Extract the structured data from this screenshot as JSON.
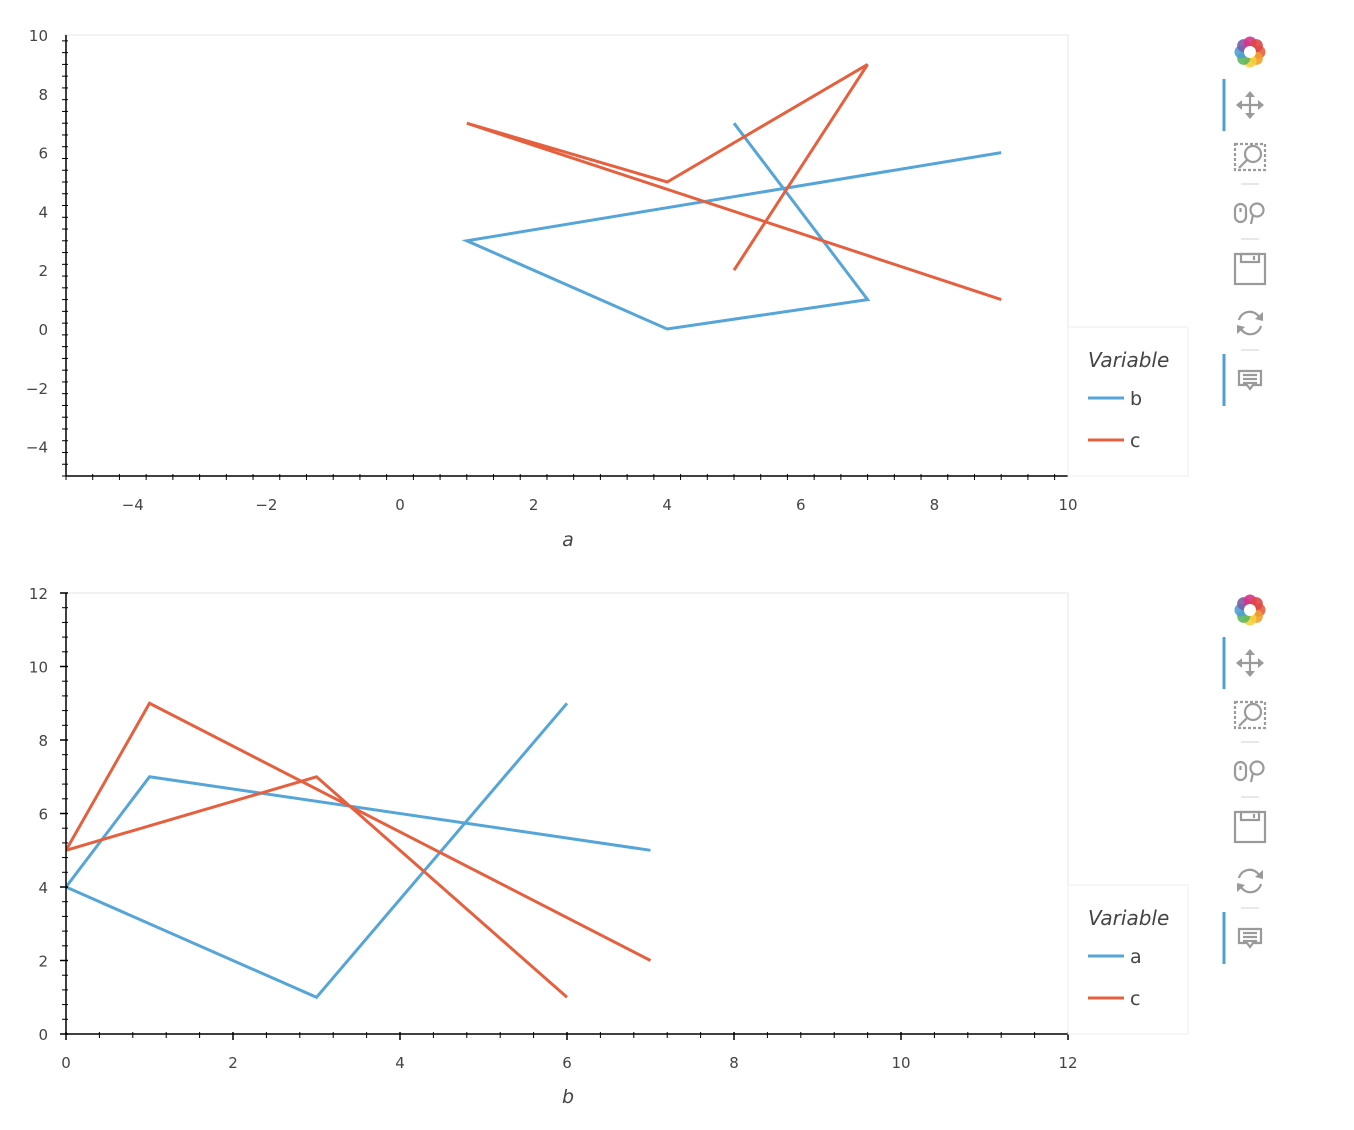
{
  "chart_data": [
    {
      "type": "line",
      "xlabel": "a",
      "ylabel": "",
      "xlim": [
        -5,
        10
      ],
      "ylim": [
        -5,
        10
      ],
      "xticks": [
        -4,
        -2,
        0,
        2,
        4,
        6,
        8,
        10
      ],
      "yticks": [
        -4,
        -2,
        0,
        2,
        4,
        6,
        8,
        10
      ],
      "xtick_labels": [
        "−4",
        "−2",
        "0",
        "2",
        "4",
        "6",
        "8",
        "10"
      ],
      "ytick_labels": [
        "−4",
        "−2",
        "0",
        "2",
        "4",
        "6",
        "8",
        "10"
      ],
      "grid": false,
      "legend": {
        "title": "Variable",
        "position": "right",
        "labels": [
          "b",
          "c"
        ]
      },
      "series": [
        {
          "name": "b",
          "color": "#56a5d8",
          "x": [
            5,
            7,
            4,
            1,
            9
          ],
          "y": [
            7,
            1,
            0,
            3,
            6
          ]
        },
        {
          "name": "c",
          "color": "#e5603f",
          "x": [
            5,
            7,
            4,
            1,
            9
          ],
          "y": [
            2,
            9,
            5,
            7,
            1
          ]
        }
      ]
    },
    {
      "type": "line",
      "xlabel": "b",
      "ylabel": "",
      "xlim": [
        0,
        12
      ],
      "ylim": [
        0,
        12
      ],
      "xticks": [
        0,
        2,
        4,
        6,
        8,
        10,
        12
      ],
      "yticks": [
        0,
        2,
        4,
        6,
        8,
        10,
        12
      ],
      "xtick_labels": [
        "0",
        "2",
        "4",
        "6",
        "8",
        "10",
        "12"
      ],
      "ytick_labels": [
        "0",
        "2",
        "4",
        "6",
        "8",
        "10",
        "12"
      ],
      "grid": false,
      "legend": {
        "title": "Variable",
        "position": "right",
        "labels": [
          "a",
          "c"
        ]
      },
      "series": [
        {
          "name": "a",
          "color": "#56a5d8",
          "x": [
            7,
            1,
            0,
            3,
            6
          ],
          "y": [
            5,
            7,
            4,
            1,
            9
          ]
        },
        {
          "name": "c",
          "color": "#e5603f",
          "x": [
            7,
            1,
            0,
            3,
            6
          ],
          "y": [
            2,
            9,
            5,
            7,
            1
          ]
        }
      ]
    }
  ],
  "toolbar": {
    "items": [
      {
        "name": "bokeh-logo-icon",
        "active": false
      },
      {
        "name": "pan-icon",
        "active": true
      },
      {
        "name": "box-zoom-icon",
        "active": false
      },
      {
        "name": "wheel-zoom-icon",
        "active": false
      },
      {
        "name": "save-icon",
        "active": false
      },
      {
        "name": "reset-icon",
        "active": false
      },
      {
        "name": "hover-icon",
        "active": true
      }
    ]
  }
}
